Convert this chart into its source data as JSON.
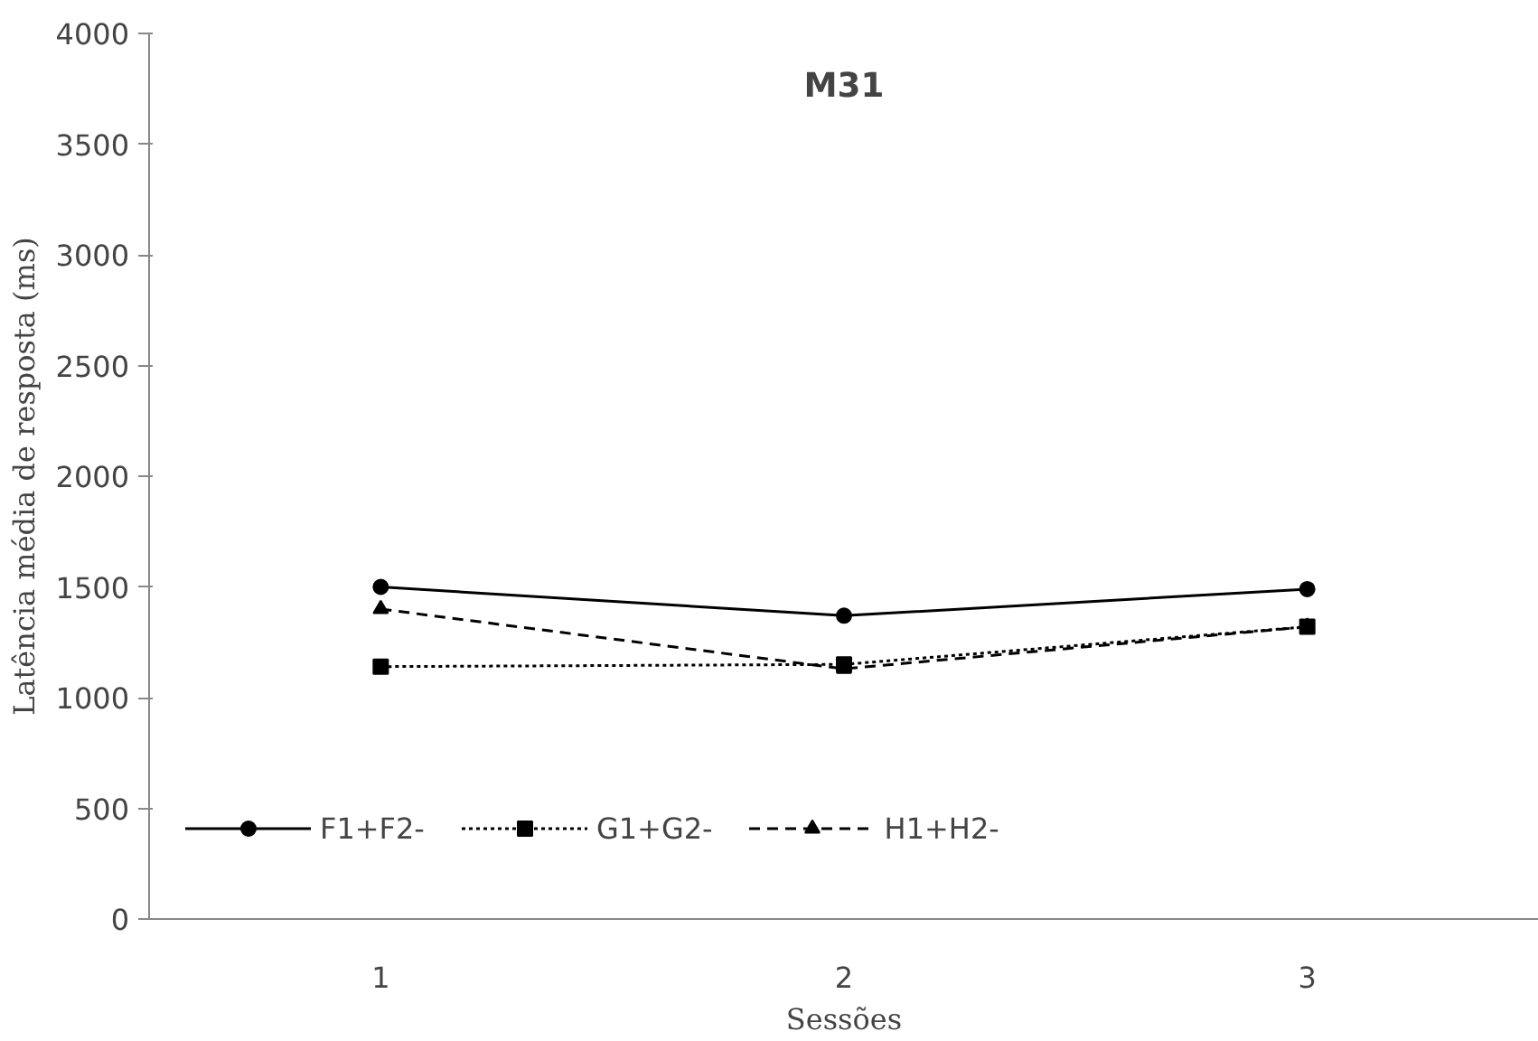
{
  "chart_data": {
    "type": "line",
    "title": "M31",
    "xlabel": "Sessões",
    "ylabel": "Latência média de resposta (ms)",
    "categories": [
      "1",
      "2",
      "3"
    ],
    "series": [
      {
        "name": "F1+F2-",
        "color": "#000000",
        "values": [
          1500,
          1370,
          1490
        ],
        "marker": "circle",
        "line_style": "solid"
      },
      {
        "name": "G1+G2-",
        "color": "#000000",
        "values": [
          1140,
          1150,
          1320
        ],
        "marker": "square",
        "line_style": "dotted"
      },
      {
        "name": "H1+H2-",
        "color": "#000000",
        "values": [
          1400,
          1130,
          1320
        ],
        "marker": "triangle",
        "line_style": "dashed"
      }
    ],
    "ylim": [
      0,
      4000
    ],
    "yticks": [
      0,
      500,
      1000,
      1500,
      2000,
      2500,
      3000,
      3500,
      4000
    ],
    "grid": false,
    "legend": "bottom"
  }
}
